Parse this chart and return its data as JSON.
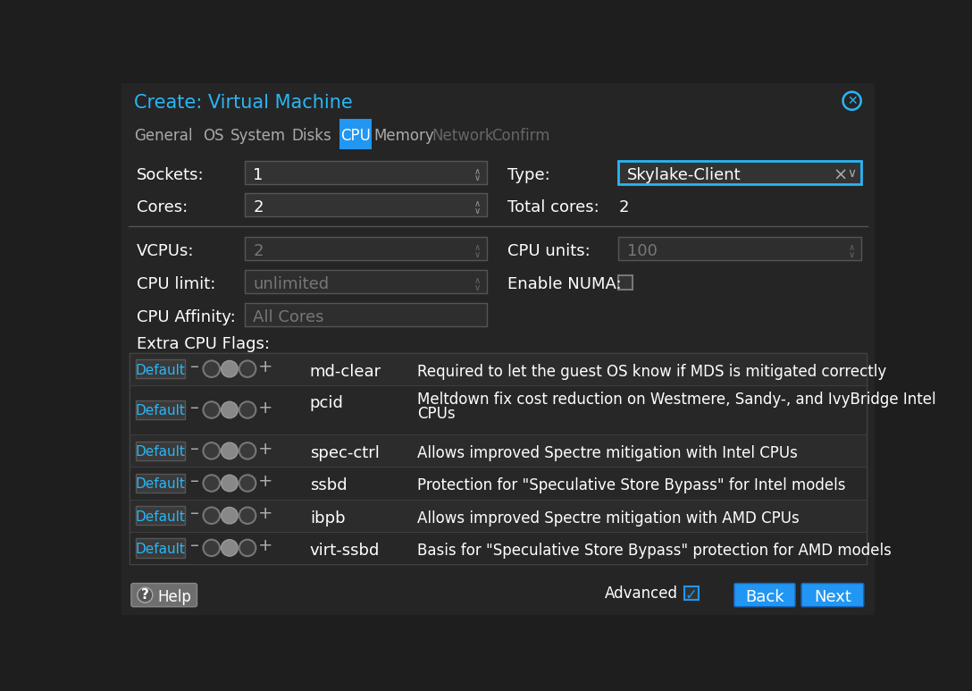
{
  "title": "Create: Virtual Machine",
  "title_color": "#29b6f6",
  "bg_color": "#1e1e1e",
  "titlebar_bg": "#252525",
  "tabbar_bg": "#1e1e1e",
  "content_bg": "#252525",
  "text_color": "#ffffff",
  "dim_text_color": "#777777",
  "active_tab": "CPU",
  "tabs": [
    "General",
    "OS",
    "System",
    "Disks",
    "CPU",
    "Memory",
    "Network",
    "Confirm"
  ],
  "tab_active_color": "#2196f3",
  "inactive_tab_color": "#aaaaaa",
  "dim_tab_color": "#666666",
  "input_bg": "#333333",
  "input_bg_dim": "#2e2e2e",
  "input_border": "#555555",
  "input_border_active": "#29b6f6",
  "close_color": "#29b6f6",
  "default_btn_color": "#29b6f6",
  "help_btn_bg": "#6e6e6e",
  "back_btn_color": "#2196f3",
  "next_btn_color": "#2196f3",
  "separator_color": "#555555",
  "row_bg_alt": [
    "#2c2c2c",
    "#272727"
  ],
  "toggle_circle_fill": "#888888",
  "toggle_circle_empty": "#555555",
  "flags": [
    {
      "name": "md-clear",
      "desc": "Required to let the guest OS know if MDS is mitigated correctly",
      "multiline": false
    },
    {
      "name": "pcid",
      "desc": "Meltdown fix cost reduction on Westmere, Sandy-, and IvyBridge Intel\nCPUs",
      "multiline": true
    },
    {
      "name": "spec-ctrl",
      "desc": "Allows improved Spectre mitigation with Intel CPUs",
      "multiline": false
    },
    {
      "name": "ssbd",
      "desc": "Protection for \"Speculative Store Bypass\" for Intel models",
      "multiline": false
    },
    {
      "name": "ibpb",
      "desc": "Allows improved Spectre mitigation with AMD CPUs",
      "multiline": false
    },
    {
      "name": "virt-ssbd",
      "desc": "Basis for \"Speculative Store Bypass\" protection for AMD models",
      "multiline": false
    }
  ]
}
